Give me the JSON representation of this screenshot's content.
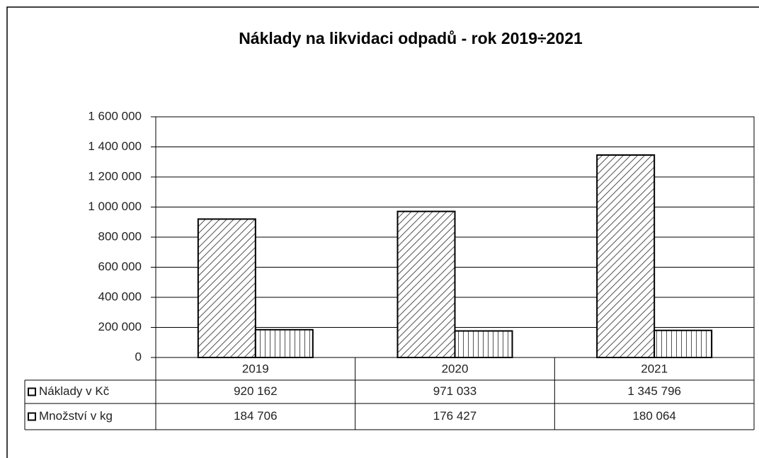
{
  "chart_data": {
    "type": "bar",
    "title": "Náklady na likvidaci odpadů - rok 2019÷2021",
    "categories": [
      "2019",
      "2020",
      "2021"
    ],
    "series": [
      {
        "name": "Náklady v Kč",
        "color": "#000000",
        "pattern": "diagonal",
        "values": [
          920162,
          971033,
          1345796
        ],
        "value_labels": [
          "920 162",
          "971 033",
          "1 345 796"
        ]
      },
      {
        "name": "Množství v kg",
        "color": "#000000",
        "pattern": "vertical",
        "values": [
          184706,
          176427,
          180064
        ],
        "value_labels": [
          "184 706",
          "176 427",
          "180 064"
        ]
      }
    ],
    "ylim": [
      0,
      1600000
    ],
    "yticks": [
      0,
      {
        "value": 200000,
        "label": "200 000"
      },
      {
        "value": 400000,
        "label": "400 000"
      },
      {
        "value": 600000,
        "label": "600 000"
      },
      {
        "value": 800000,
        "label": "800 000"
      },
      {
        "value": 1000000,
        "label": "1 000 000"
      },
      {
        "value": 1200000,
        "label": "1 200 000"
      },
      {
        "value": 1400000,
        "label": "1 400 000"
      },
      {
        "value": 1600000,
        "label": "1 600 000"
      }
    ],
    "grid": true,
    "data_table": true
  }
}
